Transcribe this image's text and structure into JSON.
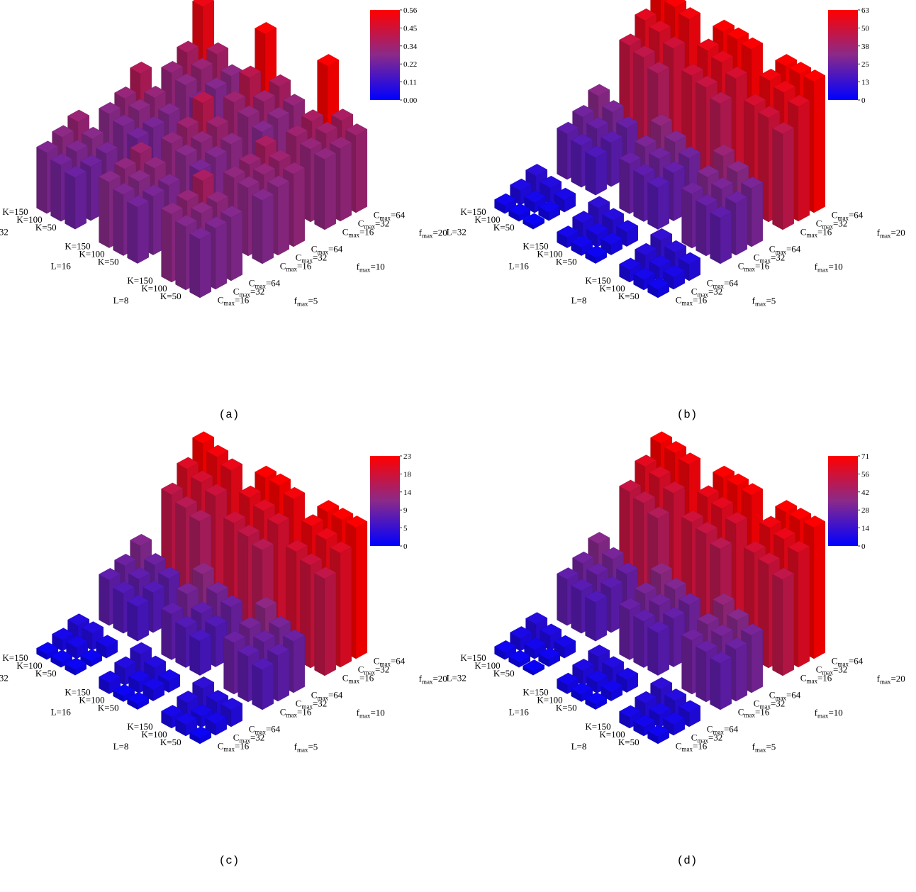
{
  "colorscale": {
    "low": "#0000ff",
    "mid": "#8a2a8a",
    "high": "#ff0000"
  },
  "axis_labels": {
    "L": [
      "L=8",
      "L=16",
      "L=32"
    ],
    "K": [
      "K=50",
      "K=100",
      "K=150"
    ],
    "C": [
      {
        "base": "C",
        "sub": "max",
        "rest": "=16"
      },
      {
        "base": "C",
        "sub": "max",
        "rest": "=32"
      },
      {
        "base": "C",
        "sub": "max",
        "rest": "=64"
      }
    ],
    "f": [
      {
        "base": "f",
        "sub": "max",
        "rest": "=5"
      },
      {
        "base": "f",
        "sub": "max",
        "rest": "=10"
      },
      {
        "base": "f",
        "sub": "max",
        "rest": "=20"
      }
    ]
  },
  "chart_data": [
    {
      "type": "bar3d",
      "caption": "(a)",
      "colorbar_ticks": [
        "0.56",
        "0.45",
        "0.34",
        "0.22",
        "0.11",
        "0.00"
      ],
      "zlim": [
        0,
        0.56
      ],
      "dimensions": [
        "L",
        "K",
        "C_max",
        "f_max"
      ],
      "values": [
        [
          [
            [
              0.25,
              0.26,
              0.27
            ],
            [
              0.27,
              0.29,
              0.3
            ],
            [
              0.29,
              0.31,
              0.36
            ]
          ],
          [
            [
              0.27,
              0.29,
              0.31
            ],
            [
              0.29,
              0.31,
              0.33
            ],
            [
              0.3,
              0.32,
              0.36
            ]
          ],
          [
            [
              0.3,
              0.31,
              0.33
            ],
            [
              0.31,
              0.34,
              0.36
            ],
            [
              0.33,
              0.36,
              0.56
            ]
          ]
        ],
        [
          [
            [
              0.24,
              0.25,
              0.26
            ],
            [
              0.26,
              0.28,
              0.3
            ],
            [
              0.28,
              0.3,
              0.33
            ]
          ],
          [
            [
              0.25,
              0.27,
              0.29
            ],
            [
              0.28,
              0.3,
              0.33
            ],
            [
              0.3,
              0.33,
              0.4
            ]
          ],
          [
            [
              0.27,
              0.29,
              0.31
            ],
            [
              0.3,
              0.33,
              0.36
            ],
            [
              0.33,
              0.4,
              0.55
            ]
          ]
        ],
        [
          [
            [
              0.22,
              0.23,
              0.25
            ],
            [
              0.24,
              0.26,
              0.28
            ],
            [
              0.26,
              0.29,
              0.32
            ]
          ],
          [
            [
              0.24,
              0.25,
              0.27
            ],
            [
              0.26,
              0.29,
              0.31
            ],
            [
              0.28,
              0.31,
              0.38
            ]
          ],
          [
            [
              0.25,
              0.27,
              0.29
            ],
            [
              0.29,
              0.32,
              0.35
            ],
            [
              0.31,
              0.36,
              0.52
            ]
          ]
        ]
      ]
    },
    {
      "type": "bar3d",
      "caption": "(b)",
      "colorbar_ticks": [
        "63",
        "50",
        "38",
        "25",
        "13",
        "0"
      ],
      "zlim": [
        0,
        63
      ],
      "dimensions": [
        "L",
        "K",
        "C_max",
        "f_max"
      ],
      "values": [
        [
          [
            [
              4,
              6,
              8
            ],
            [
              5,
              7,
              10
            ],
            [
              6,
              9,
              12
            ]
          ],
          [
            [
              22,
              25,
              28
            ],
            [
              24,
              28,
              32
            ],
            [
              26,
              30,
              36
            ]
          ],
          [
            [
              46,
              55,
              63
            ],
            [
              50,
              58,
              63
            ],
            [
              52,
              60,
              63
            ]
          ]
        ],
        [
          [
            [
              3,
              5,
              7
            ],
            [
              4,
              6,
              9
            ],
            [
              5,
              8,
              11
            ]
          ],
          [
            [
              20,
              23,
              26
            ],
            [
              22,
              26,
              30
            ],
            [
              24,
              28,
              34
            ]
          ],
          [
            [
              44,
              52,
              62
            ],
            [
              48,
              56,
              63
            ],
            [
              50,
              58,
              63
            ]
          ]
        ],
        [
          [
            [
              2,
              4,
              6
            ],
            [
              3,
              5,
              8
            ],
            [
              4,
              7,
              10
            ]
          ],
          [
            [
              18,
              21,
              24
            ],
            [
              20,
              24,
              28
            ],
            [
              22,
              26,
              32
            ]
          ],
          [
            [
              42,
              50,
              60
            ],
            [
              46,
              54,
              62
            ],
            [
              48,
              56,
              63
            ]
          ]
        ]
      ]
    },
    {
      "type": "bar3d",
      "caption": "(c)",
      "colorbar_ticks": [
        "23",
        "18",
        "14",
        "9",
        "5",
        "0"
      ],
      "zlim": [
        0,
        23
      ],
      "dimensions": [
        "L",
        "K",
        "C_max",
        "f_max"
      ],
      "values": [
        [
          [
            [
              1,
              2,
              3
            ],
            [
              2,
              2,
              3
            ],
            [
              2,
              3,
              4
            ]
          ],
          [
            [
              7,
              8,
              9
            ],
            [
              8,
              9,
              10
            ],
            [
              9,
              10,
              12
            ]
          ],
          [
            [
              17,
              20,
              23
            ],
            [
              18,
              21,
              23
            ],
            [
              19,
              22,
              23
            ]
          ]
        ],
        [
          [
            [
              1,
              2,
              2
            ],
            [
              1,
              2,
              3
            ],
            [
              2,
              3,
              4
            ]
          ],
          [
            [
              6,
              7,
              9
            ],
            [
              7,
              8,
              10
            ],
            [
              8,
              10,
              12
            ]
          ],
          [
            [
              16,
              19,
              22
            ],
            [
              17,
              20,
              23
            ],
            [
              18,
              21,
              23
            ]
          ]
        ],
        [
          [
            [
              1,
              1,
              2
            ],
            [
              1,
              2,
              3
            ],
            [
              1,
              2,
              3
            ]
          ],
          [
            [
              6,
              7,
              8
            ],
            [
              7,
              8,
              9
            ],
            [
              8,
              9,
              11
            ]
          ],
          [
            [
              15,
              18,
              21
            ],
            [
              16,
              19,
              22
            ],
            [
              17,
              20,
              23
            ]
          ]
        ]
      ]
    },
    {
      "type": "bar3d",
      "caption": "(d)",
      "colorbar_ticks": [
        "71",
        "56",
        "42",
        "28",
        "14",
        "0"
      ],
      "zlim": [
        0,
        71
      ],
      "dimensions": [
        "L",
        "K",
        "C_max",
        "f_max"
      ],
      "values": [
        [
          [
            [
              4,
              6,
              8
            ],
            [
              5,
              7,
              10
            ],
            [
              6,
              9,
              12
            ]
          ],
          [
            [
              25,
              28,
              31
            ],
            [
              27,
              31,
              35
            ],
            [
              29,
              33,
              39
            ]
          ],
          [
            [
              52,
              62,
              71
            ],
            [
              56,
              65,
              71
            ],
            [
              58,
              67,
              71
            ]
          ]
        ],
        [
          [
            [
              3,
              5,
              7
            ],
            [
              4,
              6,
              9
            ],
            [
              5,
              8,
              11
            ]
          ],
          [
            [
              23,
              26,
              29
            ],
            [
              25,
              29,
              33
            ],
            [
              27,
              31,
              37
            ]
          ],
          [
            [
              50,
              59,
              70
            ],
            [
              54,
              63,
              71
            ],
            [
              56,
              65,
              71
            ]
          ]
        ],
        [
          [
            [
              2,
              4,
              6
            ],
            [
              3,
              5,
              8
            ],
            [
              4,
              7,
              10
            ]
          ],
          [
            [
              21,
              24,
              27
            ],
            [
              23,
              27,
              31
            ],
            [
              25,
              29,
              35
            ]
          ],
          [
            [
              48,
              57,
              68
            ],
            [
              52,
              61,
              70
            ],
            [
              54,
              63,
              71
            ]
          ]
        ]
      ]
    }
  ]
}
